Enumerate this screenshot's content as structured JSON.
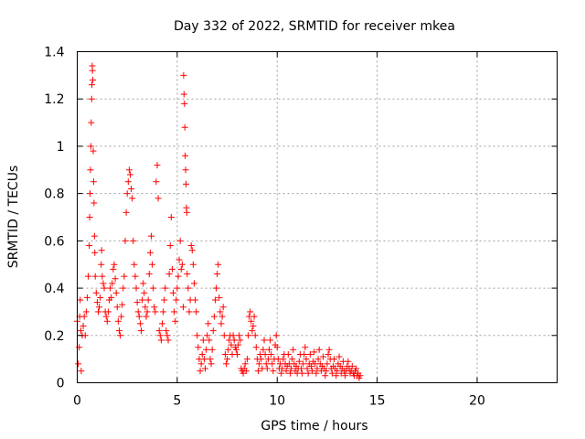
{
  "chart_data": {
    "type": "scatter",
    "title": "Day 332 of 2022, SRMTID for receiver mkea",
    "xlabel": "GPS time / hours",
    "ylabel": "SRMTID / TECUs",
    "xlim": [
      0,
      24
    ],
    "ylim": [
      0,
      1.4
    ],
    "x_ticks": [
      0,
      5,
      10,
      15,
      20
    ],
    "y_ticks": [
      0,
      0.2,
      0.4,
      0.6,
      0.8,
      1,
      1.2,
      1.4
    ],
    "x_tick_labels": [
      "0",
      "5",
      "10",
      "15",
      "20"
    ],
    "y_tick_labels": [
      "0",
      "0.2",
      "0.4",
      "0.6",
      "0.8",
      "1",
      "1.2",
      "1.4"
    ],
    "grid": true,
    "marker": "+",
    "color": "#ff0000",
    "series": [
      {
        "name": "mkea",
        "points": [
          [
            0.0,
            0.26
          ],
          [
            0.05,
            0.08
          ],
          [
            0.1,
            0.15
          ],
          [
            0.12,
            0.28
          ],
          [
            0.15,
            0.35
          ],
          [
            0.18,
            0.22
          ],
          [
            0.2,
            0.05
          ],
          [
            0.25,
            0.2
          ],
          [
            0.3,
            0.24
          ],
          [
            0.35,
            0.28
          ],
          [
            0.4,
            0.2
          ],
          [
            0.45,
            0.3
          ],
          [
            0.5,
            0.36
          ],
          [
            0.55,
            0.45
          ],
          [
            0.6,
            0.58
          ],
          [
            0.62,
            0.7
          ],
          [
            0.64,
            0.8
          ],
          [
            0.66,
            0.9
          ],
          [
            0.68,
            1.0
          ],
          [
            0.7,
            1.1
          ],
          [
            0.72,
            1.2
          ],
          [
            0.73,
            1.26
          ],
          [
            0.75,
            1.34
          ],
          [
            0.76,
            1.32
          ],
          [
            0.78,
            1.28
          ],
          [
            0.8,
            0.98
          ],
          [
            0.82,
            0.85
          ],
          [
            0.84,
            0.76
          ],
          [
            0.86,
            0.62
          ],
          [
            0.88,
            0.55
          ],
          [
            0.9,
            0.45
          ],
          [
            0.95,
            0.38
          ],
          [
            1.0,
            0.34
          ],
          [
            1.05,
            0.3
          ],
          [
            1.1,
            0.32
          ],
          [
            1.15,
            0.36
          ],
          [
            1.2,
            0.5
          ],
          [
            1.22,
            0.56
          ],
          [
            1.25,
            0.45
          ],
          [
            1.3,
            0.42
          ],
          [
            1.35,
            0.4
          ],
          [
            1.4,
            0.3
          ],
          [
            1.45,
            0.28
          ],
          [
            1.5,
            0.26
          ],
          [
            1.55,
            0.3
          ],
          [
            1.6,
            0.35
          ],
          [
            1.65,
            0.4
          ],
          [
            1.7,
            0.36
          ],
          [
            1.75,
            0.42
          ],
          [
            1.8,
            0.48
          ],
          [
            1.85,
            0.5
          ],
          [
            1.9,
            0.44
          ],
          [
            1.95,
            0.38
          ],
          [
            2.0,
            0.32
          ],
          [
            2.05,
            0.26
          ],
          [
            2.1,
            0.22
          ],
          [
            2.15,
            0.2
          ],
          [
            2.2,
            0.28
          ],
          [
            2.25,
            0.33
          ],
          [
            2.3,
            0.4
          ],
          [
            2.35,
            0.45
          ],
          [
            2.4,
            0.6
          ],
          [
            2.45,
            0.72
          ],
          [
            2.5,
            0.8
          ],
          [
            2.55,
            0.85
          ],
          [
            2.6,
            0.9
          ],
          [
            2.65,
            0.88
          ],
          [
            2.7,
            0.82
          ],
          [
            2.75,
            0.78
          ],
          [
            2.8,
            0.6
          ],
          [
            2.85,
            0.5
          ],
          [
            2.9,
            0.45
          ],
          [
            2.95,
            0.4
          ],
          [
            3.0,
            0.34
          ],
          [
            3.05,
            0.3
          ],
          [
            3.1,
            0.28
          ],
          [
            3.15,
            0.25
          ],
          [
            3.2,
            0.22
          ],
          [
            3.25,
            0.35
          ],
          [
            3.3,
            0.42
          ],
          [
            3.35,
            0.38
          ],
          [
            3.4,
            0.32
          ],
          [
            3.45,
            0.28
          ],
          [
            3.5,
            0.3
          ],
          [
            3.55,
            0.35
          ],
          [
            3.6,
            0.46
          ],
          [
            3.65,
            0.55
          ],
          [
            3.7,
            0.62
          ],
          [
            3.75,
            0.5
          ],
          [
            3.8,
            0.4
          ],
          [
            3.85,
            0.32
          ],
          [
            3.9,
            0.3
          ],
          [
            3.95,
            0.85
          ],
          [
            4.0,
            0.92
          ],
          [
            4.05,
            0.78
          ],
          [
            4.1,
            0.22
          ],
          [
            4.15,
            0.2
          ],
          [
            4.2,
            0.18
          ],
          [
            4.25,
            0.25
          ],
          [
            4.3,
            0.3
          ],
          [
            4.35,
            0.35
          ],
          [
            4.4,
            0.4
          ],
          [
            4.45,
            0.22
          ],
          [
            4.5,
            0.2
          ],
          [
            4.55,
            0.18
          ],
          [
            4.6,
            0.46
          ],
          [
            4.65,
            0.58
          ],
          [
            4.7,
            0.7
          ],
          [
            4.75,
            0.48
          ],
          [
            4.8,
            0.38
          ],
          [
            4.85,
            0.3
          ],
          [
            4.9,
            0.26
          ],
          [
            4.95,
            0.35
          ],
          [
            5.0,
            0.4
          ],
          [
            5.05,
            0.45
          ],
          [
            5.1,
            0.52
          ],
          [
            5.15,
            0.6
          ],
          [
            5.2,
            0.48
          ],
          [
            5.25,
            0.5
          ],
          [
            5.3,
            0.32
          ],
          [
            5.32,
            1.3
          ],
          [
            5.34,
            1.22
          ],
          [
            5.36,
            1.18
          ],
          [
            5.38,
            1.08
          ],
          [
            5.4,
            0.96
          ],
          [
            5.42,
            0.9
          ],
          [
            5.44,
            0.84
          ],
          [
            5.46,
            0.74
          ],
          [
            5.48,
            0.72
          ],
          [
            5.5,
            0.46
          ],
          [
            5.55,
            0.4
          ],
          [
            5.6,
            0.3
          ],
          [
            5.65,
            0.35
          ],
          [
            5.7,
            0.58
          ],
          [
            5.75,
            0.56
          ],
          [
            5.8,
            0.5
          ],
          [
            5.85,
            0.42
          ],
          [
            5.9,
            0.35
          ],
          [
            5.95,
            0.3
          ],
          [
            6.0,
            0.2
          ],
          [
            6.05,
            0.15
          ],
          [
            6.1,
            0.1
          ],
          [
            6.15,
            0.05
          ],
          [
            6.2,
            0.08
          ],
          [
            6.25,
            0.12
          ],
          [
            6.3,
            0.18
          ],
          [
            6.35,
            0.1
          ],
          [
            6.4,
            0.06
          ],
          [
            6.45,
            0.14
          ],
          [
            6.5,
            0.2
          ],
          [
            6.55,
            0.25
          ],
          [
            6.6,
            0.18
          ],
          [
            6.65,
            0.1
          ],
          [
            6.7,
            0.08
          ],
          [
            6.75,
            0.14
          ],
          [
            6.8,
            0.22
          ],
          [
            6.85,
            0.28
          ],
          [
            6.9,
            0.35
          ],
          [
            6.95,
            0.4
          ],
          [
            7.0,
            0.46
          ],
          [
            7.05,
            0.5
          ],
          [
            7.1,
            0.36
          ],
          [
            7.15,
            0.3
          ],
          [
            7.2,
            0.25
          ],
          [
            7.25,
            0.28
          ],
          [
            7.3,
            0.32
          ],
          [
            7.35,
            0.2
          ],
          [
            7.4,
            0.12
          ],
          [
            7.45,
            0.08
          ],
          [
            7.5,
            0.1
          ],
          [
            7.55,
            0.14
          ],
          [
            7.6,
            0.18
          ],
          [
            7.65,
            0.2
          ],
          [
            7.7,
            0.16
          ],
          [
            7.75,
            0.12
          ],
          [
            7.8,
            0.2
          ],
          [
            7.85,
            0.18
          ],
          [
            7.9,
            0.15
          ],
          [
            7.95,
            0.14
          ],
          [
            8.0,
            0.12
          ],
          [
            8.05,
            0.16
          ],
          [
            8.1,
            0.2
          ],
          [
            8.15,
            0.18
          ],
          [
            8.2,
            0.06
          ],
          [
            8.25,
            0.05
          ],
          [
            8.3,
            0.04
          ],
          [
            8.35,
            0.06
          ],
          [
            8.4,
            0.08
          ],
          [
            8.45,
            0.05
          ],
          [
            8.5,
            0.1
          ],
          [
            8.55,
            0.2
          ],
          [
            8.6,
            0.28
          ],
          [
            8.65,
            0.3
          ],
          [
            8.7,
            0.26
          ],
          [
            8.75,
            0.22
          ],
          [
            8.8,
            0.24
          ],
          [
            8.85,
            0.28
          ],
          [
            8.9,
            0.2
          ],
          [
            8.95,
            0.15
          ],
          [
            9.0,
            0.1
          ],
          [
            9.05,
            0.05
          ],
          [
            9.1,
            0.08
          ],
          [
            9.15,
            0.12
          ],
          [
            9.2,
            0.1
          ],
          [
            9.25,
            0.06
          ],
          [
            9.3,
            0.14
          ],
          [
            9.35,
            0.18
          ],
          [
            9.4,
            0.12
          ],
          [
            9.45,
            0.08
          ],
          [
            9.5,
            0.06
          ],
          [
            9.55,
            0.1
          ],
          [
            9.6,
            0.14
          ],
          [
            9.65,
            0.18
          ],
          [
            9.7,
            0.12
          ],
          [
            9.75,
            0.08
          ],
          [
            9.8,
            0.05
          ],
          [
            9.85,
            0.1
          ],
          [
            9.9,
            0.16
          ],
          [
            9.95,
            0.2
          ],
          [
            10.0,
            0.15
          ],
          [
            10.05,
            0.1
          ],
          [
            10.1,
            0.06
          ],
          [
            10.15,
            0.08
          ],
          [
            10.2,
            0.04
          ],
          [
            10.25,
            0.06
          ],
          [
            10.3,
            0.1
          ],
          [
            10.35,
            0.12
          ],
          [
            10.4,
            0.08
          ],
          [
            10.45,
            0.05
          ],
          [
            10.5,
            0.07
          ],
          [
            10.55,
            0.12
          ],
          [
            10.6,
            0.08
          ],
          [
            10.65,
            0.04
          ],
          [
            10.7,
            0.06
          ],
          [
            10.75,
            0.1
          ],
          [
            10.8,
            0.14
          ],
          [
            10.85,
            0.08
          ],
          [
            10.9,
            0.05
          ],
          [
            10.95,
            0.07
          ],
          [
            11.0,
            0.04
          ],
          [
            11.05,
            0.06
          ],
          [
            11.1,
            0.09
          ],
          [
            11.15,
            0.12
          ],
          [
            11.2,
            0.06
          ],
          [
            11.25,
            0.04
          ],
          [
            11.3,
            0.08
          ],
          [
            11.35,
            0.12
          ],
          [
            11.4,
            0.15
          ],
          [
            11.45,
            0.1
          ],
          [
            11.5,
            0.06
          ],
          [
            11.55,
            0.04
          ],
          [
            11.6,
            0.08
          ],
          [
            11.65,
            0.12
          ],
          [
            11.7,
            0.07
          ],
          [
            11.75,
            0.05
          ],
          [
            11.8,
            0.09
          ],
          [
            11.85,
            0.13
          ],
          [
            11.9,
            0.08
          ],
          [
            11.95,
            0.04
          ],
          [
            12.0,
            0.06
          ],
          [
            12.05,
            0.1
          ],
          [
            12.1,
            0.14
          ],
          [
            12.15,
            0.08
          ],
          [
            12.2,
            0.05
          ],
          [
            12.25,
            0.07
          ],
          [
            12.3,
            0.11
          ],
          [
            12.35,
            0.06
          ],
          [
            12.4,
            0.03
          ],
          [
            12.45,
            0.05
          ],
          [
            12.5,
            0.08
          ],
          [
            12.55,
            0.12
          ],
          [
            12.6,
            0.14
          ],
          [
            12.65,
            0.1
          ],
          [
            12.7,
            0.06
          ],
          [
            12.75,
            0.04
          ],
          [
            12.8,
            0.07
          ],
          [
            12.85,
            0.1
          ],
          [
            12.9,
            0.06
          ],
          [
            12.95,
            0.03
          ],
          [
            13.0,
            0.05
          ],
          [
            13.05,
            0.08
          ],
          [
            13.1,
            0.11
          ],
          [
            13.15,
            0.07
          ],
          [
            13.2,
            0.04
          ],
          [
            13.25,
            0.06
          ],
          [
            13.3,
            0.09
          ],
          [
            13.35,
            0.05
          ],
          [
            13.4,
            0.03
          ],
          [
            13.45,
            0.05
          ],
          [
            13.5,
            0.07
          ],
          [
            13.55,
            0.09
          ],
          [
            13.6,
            0.06
          ],
          [
            13.65,
            0.04
          ],
          [
            13.7,
            0.05
          ],
          [
            13.75,
            0.07
          ],
          [
            13.8,
            0.04
          ],
          [
            13.85,
            0.03
          ],
          [
            13.9,
            0.05
          ],
          [
            13.95,
            0.06
          ],
          [
            14.0,
            0.03
          ],
          [
            14.05,
            0.04
          ],
          [
            14.1,
            0.02
          ],
          [
            14.15,
            0.03
          ]
        ]
      }
    ]
  }
}
